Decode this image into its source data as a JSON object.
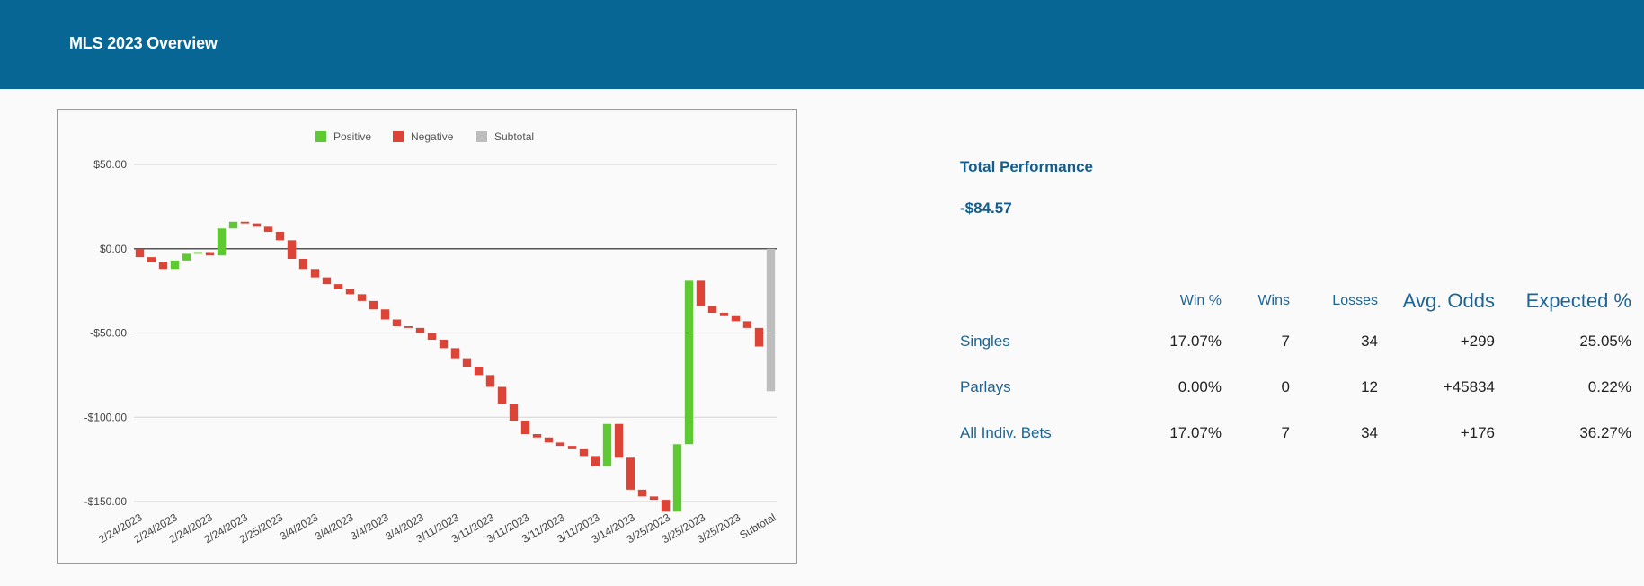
{
  "header": {
    "title": "MLS 2023 Overview"
  },
  "performance": {
    "title": "Total Performance",
    "value": "-$84.57"
  },
  "stats": {
    "columns": [
      "",
      "Win %",
      "Wins",
      "Losses",
      "Avg. Odds",
      "Expected %"
    ],
    "rows": [
      {
        "label": "Singles",
        "win_pct": "17.07%",
        "wins": "7",
        "losses": "34",
        "avg_odds": "+299",
        "expected_pct": "25.05%"
      },
      {
        "label": "Parlays",
        "win_pct": "0.00%",
        "wins": "0",
        "losses": "12",
        "avg_odds": "+45834",
        "expected_pct": "0.22%"
      },
      {
        "label": "All Indiv. Bets",
        "win_pct": "17.07%",
        "wins": "7",
        "losses": "34",
        "avg_odds": "+176",
        "expected_pct": "36.27%"
      }
    ]
  },
  "chart_data": {
    "type": "waterfall",
    "legend": [
      {
        "name": "Positive",
        "color": "#5ec932"
      },
      {
        "name": "Negative",
        "color": "#db4437"
      },
      {
        "name": "Subtotal",
        "color": "#bdbdbd"
      }
    ],
    "legend_position": "top",
    "grid": true,
    "ylim": [
      -150,
      50
    ],
    "yticks": [
      50,
      0,
      -50,
      -100,
      -150
    ],
    "ytick_labels": [
      "$50.00",
      "$0.00",
      "-$50.00",
      "-$100.00",
      "-$150.00"
    ],
    "xtick_labels": [
      "2/24/2023",
      "2/24/2023",
      "2/24/2023",
      "2/24/2023",
      "2/25/2023",
      "3/4/2023",
      "3/4/2023",
      "3/4/2023",
      "3/4/2023",
      "3/11/2023",
      "3/11/2023",
      "3/11/2023",
      "3/11/2023",
      "3/11/2023",
      "3/14/2023",
      "3/25/2023",
      "3/25/2023",
      "3/25/2023",
      "Subtotal"
    ],
    "changes": [
      -5,
      -3,
      -4,
      5,
      4,
      1,
      -2,
      16,
      4,
      -1,
      -2,
      -3,
      -5,
      -11,
      -6,
      -5,
      -4,
      -3,
      -3,
      -4,
      -5,
      -6,
      -4,
      -1,
      -3,
      -4,
      -5,
      -6,
      -5,
      -5,
      -7,
      -10,
      -10,
      -8,
      -2,
      -3,
      -2,
      -2,
      -4,
      -6,
      25,
      -20,
      -19,
      -4,
      -2,
      -7,
      40,
      97,
      -15,
      -4,
      -2,
      -3,
      -4,
      -11
    ],
    "subtotal": -84.57
  }
}
